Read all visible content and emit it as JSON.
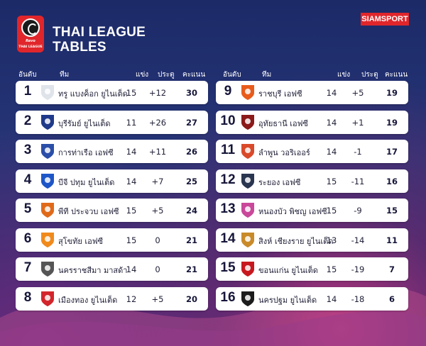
{
  "brand": "SIAMSPORT",
  "title_line1": "THAI LEAGUE",
  "title_line2": "TABLES",
  "logo": {
    "sponsor": "Revo",
    "name": "THAI LEAGUE"
  },
  "headers": {
    "rank": "อันดับ",
    "team": "ทีม",
    "played": "แข่ง",
    "gd": "ประตู",
    "pts": "คะแนน"
  },
  "standings": [
    {
      "rank": "1",
      "team": "ทรู แบงค็อก ยูไนเต็ด",
      "played": "15",
      "gd": "+12",
      "pts": "30",
      "crest": "true-bangkok-united-crest",
      "color": "#dfe3ea"
    },
    {
      "rank": "2",
      "team": "บุรีรัมย์ ยูไนเต็ด",
      "played": "11",
      "gd": "+26",
      "pts": "27",
      "crest": "buriram-united-crest",
      "color": "#1f3a8a"
    },
    {
      "rank": "3",
      "team": "การท่าเรือ เอฟซี",
      "played": "14",
      "gd": "+11",
      "pts": "26",
      "crest": "port-fc-crest",
      "color": "#2b4ea8"
    },
    {
      "rank": "4",
      "team": "บีจี ปทุม ยูไนเต็ด",
      "played": "14",
      "gd": "+7",
      "pts": "25",
      "crest": "bg-pathum-united-crest",
      "color": "#1e56c8"
    },
    {
      "rank": "5",
      "team": "พีที ประจวบ เอฟซี",
      "played": "15",
      "gd": "+5",
      "pts": "24",
      "crest": "pt-prachuap-fc-crest",
      "color": "#e06a1a"
    },
    {
      "rank": "6",
      "team": "สุโขทัย เอฟซี",
      "played": "15",
      "gd": "0",
      "pts": "21",
      "crest": "sukhothai-fc-crest",
      "color": "#f08a1d"
    },
    {
      "rank": "7",
      "team": "นครราชสีมา มาสด้า",
      "played": "14",
      "gd": "0",
      "pts": "21",
      "crest": "nakhon-ratchasima-mazda-crest",
      "color": "#555555"
    },
    {
      "rank": "8",
      "team": "เมืองทอง ยูไนเต็ด",
      "played": "12",
      "gd": "+5",
      "pts": "20",
      "crest": "muangthong-united-crest",
      "color": "#d2262c"
    },
    {
      "rank": "9",
      "team": "ราชบุรี เอฟซี",
      "played": "14",
      "gd": "+5",
      "pts": "19",
      "crest": "ratchaburi-fc-crest",
      "color": "#e85b1b"
    },
    {
      "rank": "10",
      "team": "อุทัยธานี เอฟซี",
      "played": "14",
      "gd": "+1",
      "pts": "19",
      "crest": "uthai-thani-fc-crest",
      "color": "#8b1a1a"
    },
    {
      "rank": "11",
      "team": "ลำพูน วอริเออร์",
      "played": "14",
      "gd": "-1",
      "pts": "17",
      "crest": "lamphun-warrior-crest",
      "color": "#d94a2a"
    },
    {
      "rank": "12",
      "team": "ระยอง เอฟซี",
      "played": "15",
      "gd": "-11",
      "pts": "16",
      "crest": "rayong-fc-crest",
      "color": "#2a3550"
    },
    {
      "rank": "13",
      "team": "หนองบัว พิชญ เอฟซี",
      "played": "15",
      "gd": "-9",
      "pts": "15",
      "crest": "nongbua-pitchaya-fc-crest",
      "color": "#c9489a"
    },
    {
      "rank": "14",
      "team": "สิงห์ เชียงราย ยูไนเต็ด",
      "played": "13",
      "gd": "-14",
      "pts": "11",
      "crest": "singha-chiangrai-united-crest",
      "color": "#c98a2a"
    },
    {
      "rank": "15",
      "team": "ขอนแก่น ยูไนเต็ด",
      "played": "15",
      "gd": "-19",
      "pts": "7",
      "crest": "khon-kaen-united-crest",
      "color": "#c8181f"
    },
    {
      "rank": "16",
      "team": "นครปฐม ยูไนเต็ด",
      "played": "14",
      "gd": "-18",
      "pts": "6",
      "crest": "nakhon-pathom-united-crest",
      "color": "#1c1c1c"
    }
  ]
}
